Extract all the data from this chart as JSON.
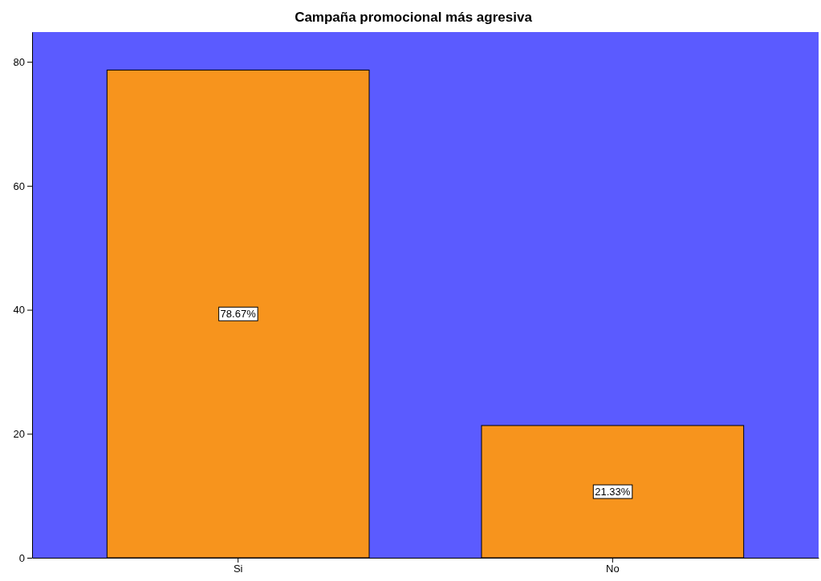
{
  "chart_data": {
    "type": "bar",
    "title": "Campaña promocional más agresiva",
    "categories": [
      "Si",
      "No"
    ],
    "values": [
      78.67,
      21.33
    ],
    "value_labels": [
      "78.67%",
      "21.33%"
    ],
    "color": "#f7941d",
    "ylim": [
      0,
      84.8
    ],
    "yticks": [
      0,
      20,
      40,
      60,
      80
    ],
    "grid": false
  }
}
